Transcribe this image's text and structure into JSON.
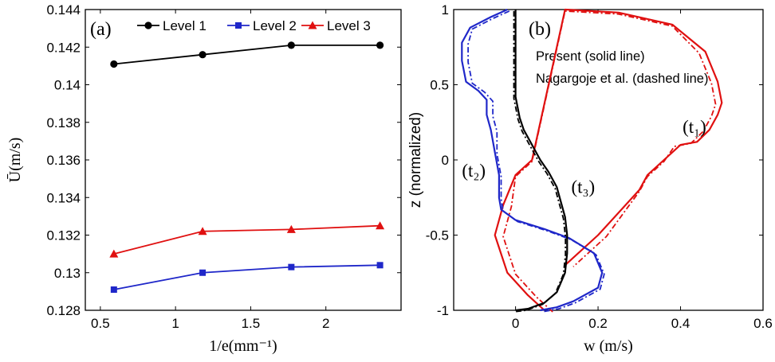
{
  "chart_data": [
    {
      "type": "line",
      "panel_label": "(a)",
      "xlabel": "1/e(mm⁻¹)",
      "ylabel": "Ū(m/s)",
      "xlim": [
        0.4,
        2.5
      ],
      "ylim": [
        0.128,
        0.144
      ],
      "xticks": [
        "0.5",
        "1",
        "1.5",
        "2"
      ],
      "xtick_values": [
        0.5,
        1,
        1.5,
        2
      ],
      "yticks": [
        "0.128",
        "0.13",
        "0.132",
        "0.134",
        "0.136",
        "0.138",
        "0.14",
        "0.142",
        "0.144"
      ],
      "ytick_values": [
        0.128,
        0.13,
        0.132,
        0.134,
        0.136,
        0.138,
        0.14,
        0.142,
        0.144
      ],
      "x": [
        0.59,
        1.18,
        1.77,
        2.36
      ],
      "legend_position": "top",
      "series": [
        {
          "name": "Level 1",
          "color": "#000000",
          "marker": "circle",
          "values": [
            0.1411,
            0.1416,
            0.1421,
            0.1421
          ]
        },
        {
          "name": "Level 2",
          "color": "#1f27c9",
          "marker": "square",
          "values": [
            0.1291,
            0.13,
            0.1303,
            0.1304
          ]
        },
        {
          "name": "Level 3",
          "color": "#e01010",
          "marker": "triangle",
          "values": [
            0.131,
            0.1322,
            0.1323,
            0.1325
          ]
        }
      ]
    },
    {
      "type": "line",
      "panel_label": "(b)",
      "xlabel": "w (m/s)",
      "ylabel": "z (normalized)",
      "xlim": [
        -0.15,
        0.6
      ],
      "ylim": [
        -1,
        1
      ],
      "xticks": [
        "0",
        "0.2",
        "0.4",
        "0.6"
      ],
      "xtick_values": [
        0,
        0.2,
        0.4,
        0.6
      ],
      "yticks": [
        "-1",
        "-0.5",
        "0",
        "0.5",
        "1"
      ],
      "ytick_values": [
        -1,
        -0.5,
        0,
        0.5,
        1
      ],
      "annotations": [
        "Present (solid line)",
        "Nagargoje et al. (dashed line)"
      ],
      "curve_labels": [
        {
          "text": "(t₁)",
          "at": [
            0.405,
            0.18
          ]
        },
        {
          "text": "(t₂)",
          "at": [
            -0.13,
            -0.11
          ]
        },
        {
          "text": "(t₃)",
          "at": [
            0.135,
            -0.22
          ]
        }
      ],
      "series": [
        {
          "curve": "t1",
          "style": "solid",
          "color": "#e01010",
          "w": [
            0.07,
            0.03,
            -0.02,
            -0.05,
            -0.03,
            0.0,
            0.04,
            0.12,
            0.25,
            0.38,
            0.46,
            0.49,
            0.5,
            0.49,
            0.47,
            0.44,
            0.4,
            0.36,
            0.32,
            0.3,
            0.2,
            0.12
          ],
          "z": [
            -1.0,
            -0.9,
            -0.75,
            -0.5,
            -0.3,
            -0.1,
            0.0,
            1.0,
            0.98,
            0.9,
            0.72,
            0.52,
            0.38,
            0.3,
            0.2,
            0.12,
            0.1,
            0.0,
            -0.1,
            -0.2,
            -0.5,
            -0.7
          ]
        },
        {
          "curve": "t2",
          "style": "solid",
          "color": "#1f27c9",
          "w": [
            -0.02,
            -0.06,
            -0.11,
            -0.13,
            -0.13,
            -0.12,
            -0.09,
            -0.07,
            -0.07,
            -0.06,
            -0.05,
            -0.04,
            -0.04,
            -0.035,
            0.0,
            0.07,
            0.13,
            0.19,
            0.21,
            0.2,
            0.14,
            0.1,
            0.06
          ],
          "z": [
            1.0,
            0.95,
            0.88,
            0.78,
            0.66,
            0.52,
            0.46,
            0.4,
            0.3,
            0.2,
            0.05,
            -0.1,
            -0.25,
            -0.33,
            -0.4,
            -0.46,
            -0.52,
            -0.62,
            -0.75,
            -0.85,
            -0.94,
            -0.98,
            -1.0
          ]
        },
        {
          "curve": "t3",
          "style": "solid",
          "color": "#000000",
          "w": [
            0.0,
            0.0,
            0.0,
            0.0,
            0.0,
            0.005,
            0.01,
            0.02,
            0.04,
            0.06,
            0.08,
            0.1,
            0.11,
            0.12,
            0.125,
            0.125,
            0.12,
            0.1,
            0.07,
            0.03,
            0.0
          ],
          "z": [
            1.0,
            0.85,
            0.7,
            0.55,
            0.42,
            0.35,
            0.28,
            0.2,
            0.1,
            0.0,
            -0.08,
            -0.18,
            -0.28,
            -0.38,
            -0.5,
            -0.62,
            -0.75,
            -0.88,
            -0.95,
            -0.99,
            -1.0
          ]
        }
      ]
    }
  ]
}
